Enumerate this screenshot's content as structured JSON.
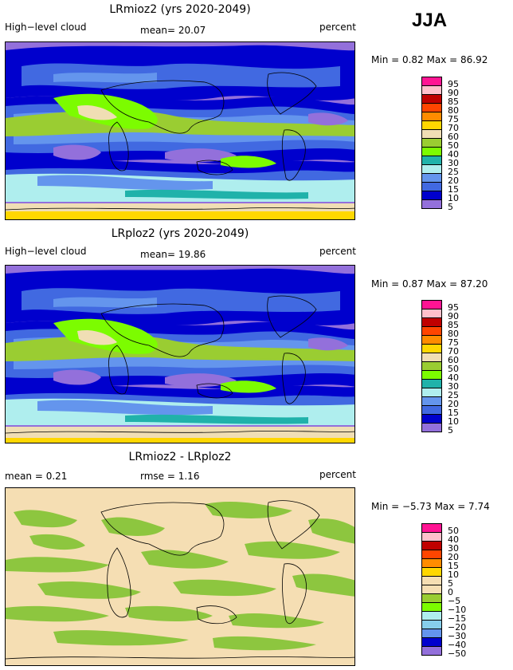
{
  "season": "JJA",
  "panels": [
    {
      "title": "LRmioz2 (yrs 2020-2049)",
      "left_label": "High−level cloud",
      "mean_label": "mean=  20.07",
      "units": "percent",
      "stats": "Min =    0.82  Max =   86.92",
      "legend": {
        "labels": [
          "95",
          "90",
          "85",
          "80",
          "75",
          "70",
          "60",
          "50",
          "40",
          "30",
          "25",
          "20",
          "15",
          "10",
          "5"
        ],
        "colors": [
          "#ff1493",
          "#ffc0cb",
          "#c00000",
          "#ff4500",
          "#ff8c00",
          "#ffd700",
          "#f0deb4",
          "#9acd32",
          "#7cfc00",
          "#20b2aa",
          "#afeeee",
          "#6495ed",
          "#4169e1",
          "#0000cd",
          "#9370db"
        ]
      }
    },
    {
      "title": "LRploz2 (yrs 2020-2049)",
      "left_label": "High−level cloud",
      "mean_label": "mean=  19.86",
      "units": "percent",
      "stats": "Min =    0.87  Max =   87.20",
      "legend": {
        "labels": [
          "95",
          "90",
          "85",
          "80",
          "75",
          "70",
          "60",
          "50",
          "40",
          "30",
          "25",
          "20",
          "15",
          "10",
          "5"
        ],
        "colors": [
          "#ff1493",
          "#ffc0cb",
          "#c00000",
          "#ff4500",
          "#ff8c00",
          "#ffd700",
          "#f0deb4",
          "#9acd32",
          "#7cfc00",
          "#20b2aa",
          "#afeeee",
          "#6495ed",
          "#4169e1",
          "#0000cd",
          "#9370db"
        ]
      }
    },
    {
      "title": "LRmioz2 - LRploz2",
      "left_label": "mean =    0.21",
      "mean_label": "rmse =    1.16",
      "units": "percent",
      "stats": "Min =  −5.73  Max =    7.74",
      "legend": {
        "labels": [
          "50",
          "40",
          "30",
          "20",
          "15",
          "10",
          "5",
          "0",
          "−5",
          "−10",
          "−15",
          "−20",
          "−30",
          "−40",
          "−50"
        ],
        "colors": [
          "#ff1493",
          "#ffc0cb",
          "#c00000",
          "#ff4500",
          "#ff8c00",
          "#ffd700",
          "#f5deb3",
          "#f5deb3",
          "#9acd32",
          "#7cfc00",
          "#afeeee",
          "#87ceeb",
          "#6495ed",
          "#0000cd",
          "#9370db"
        ]
      }
    }
  ],
  "map_colors": {
    "purple": "#9370db",
    "navy": "#0000cd",
    "royal": "#4169e1",
    "cornflower": "#6495ed",
    "paleturq": "#afeeee",
    "teal": "#20b2aa",
    "lime": "#7cfc00",
    "olive": "#9acd32",
    "wheat": "#f0deb4",
    "gold": "#ffd700",
    "diffbg": "#f5deb3",
    "diffgreen": "#8dc63f"
  }
}
